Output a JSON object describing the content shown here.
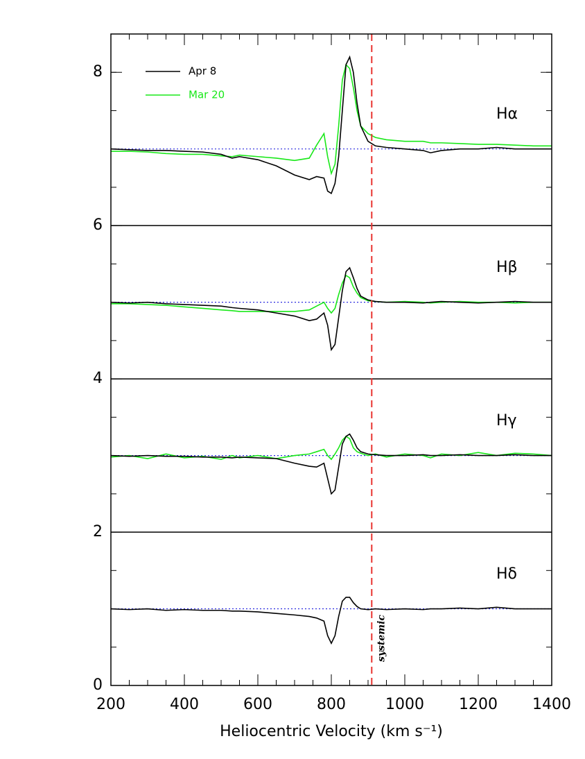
{
  "chart_data": {
    "type": "line",
    "xlabel": "Heliocentric Velocity (km s⁻¹)",
    "xlim": [
      200,
      1400
    ],
    "ylim": [
      0,
      8.5
    ],
    "xticks": [
      200,
      400,
      600,
      800,
      1000,
      1200,
      1400
    ],
    "yticks": [
      0,
      2,
      4,
      6,
      8
    ],
    "xminor_step": 50,
    "yminor_step": 0.5,
    "separators": [
      2,
      4,
      6
    ],
    "systemic_velocity": 910,
    "systemic_label": "systemic",
    "systemic_color": "#e8322f",
    "baseline_color": "#2a2adf",
    "series": [
      {
        "name": "Apr 8",
        "color": "#000000"
      },
      {
        "name": "Mar 20",
        "color": "#18e818"
      }
    ],
    "x": [
      200,
      250,
      300,
      350,
      400,
      450,
      500,
      530,
      550,
      600,
      650,
      700,
      740,
      760,
      780,
      790,
      800,
      810,
      820,
      830,
      840,
      850,
      860,
      870,
      880,
      900,
      920,
      950,
      1000,
      1050,
      1070,
      1100,
      1150,
      1200,
      1250,
      1300,
      1350,
      1400
    ],
    "panels": [
      {
        "label": "Hα",
        "baseline": 7,
        "values": [
          [
            7.0,
            6.99,
            6.98,
            6.98,
            6.97,
            6.96,
            6.93,
            6.88,
            6.9,
            6.86,
            6.78,
            6.66,
            6.6,
            6.64,
            6.62,
            6.45,
            6.42,
            6.55,
            6.9,
            7.5,
            8.1,
            8.2,
            8.0,
            7.6,
            7.3,
            7.1,
            7.04,
            7.02,
            7.0,
            6.98,
            6.95,
            6.98,
            7.0,
            7.0,
            7.02,
            7.0,
            7.0,
            7.0
          ],
          [
            6.97,
            6.97,
            6.96,
            6.94,
            6.93,
            6.93,
            6.91,
            6.9,
            6.92,
            6.9,
            6.88,
            6.85,
            6.88,
            7.05,
            7.2,
            6.9,
            6.68,
            6.8,
            7.3,
            7.9,
            8.1,
            8.05,
            7.8,
            7.5,
            7.3,
            7.2,
            7.15,
            7.12,
            7.1,
            7.1,
            7.08,
            7.08,
            7.07,
            7.06,
            7.06,
            7.05,
            7.04,
            7.04
          ]
        ]
      },
      {
        "label": "Hβ",
        "baseline": 5,
        "values": [
          [
            5.0,
            4.99,
            5.0,
            4.98,
            4.97,
            4.96,
            4.95,
            4.93,
            4.92,
            4.9,
            4.86,
            4.82,
            4.76,
            4.78,
            4.86,
            4.7,
            4.38,
            4.45,
            4.8,
            5.15,
            5.4,
            5.45,
            5.32,
            5.18,
            5.08,
            5.03,
            5.01,
            5.0,
            5.0,
            4.99,
            5.0,
            5.01,
            5.0,
            4.99,
            5.0,
            5.01,
            5.0,
            5.0
          ],
          [
            4.98,
            4.98,
            4.97,
            4.96,
            4.94,
            4.92,
            4.9,
            4.89,
            4.88,
            4.88,
            4.88,
            4.88,
            4.9,
            4.95,
            5.0,
            4.92,
            4.86,
            4.92,
            5.1,
            5.25,
            5.35,
            5.32,
            5.2,
            5.12,
            5.06,
            5.02,
            5.01,
            5.0,
            5.01,
            5.0,
            4.99,
            5.0,
            5.01,
            5.0,
            5.0,
            4.99,
            5.0,
            5.0
          ]
        ]
      },
      {
        "label": "Hγ",
        "baseline": 3,
        "values": [
          [
            3.0,
            2.99,
            3.0,
            2.99,
            2.99,
            2.98,
            2.98,
            2.97,
            2.98,
            2.97,
            2.96,
            2.9,
            2.86,
            2.85,
            2.9,
            2.7,
            2.5,
            2.55,
            2.85,
            3.15,
            3.25,
            3.28,
            3.2,
            3.1,
            3.05,
            3.02,
            3.01,
            3.0,
            3.0,
            3.01,
            3.0,
            3.0,
            3.01,
            3.0,
            3.0,
            3.01,
            3.0,
            3.0
          ],
          [
            2.98,
            3.0,
            2.96,
            3.02,
            2.97,
            2.99,
            2.95,
            3.0,
            2.97,
            3.0,
            2.96,
            3.0,
            3.02,
            3.05,
            3.08,
            3.0,
            2.95,
            3.02,
            3.1,
            3.2,
            3.25,
            3.22,
            3.1,
            3.05,
            3.03,
            3.0,
            3.02,
            2.98,
            3.02,
            3.0,
            2.97,
            3.02,
            3.0,
            3.04,
            3.0,
            3.03,
            3.02,
            3.0
          ]
        ]
      },
      {
        "label": "Hδ",
        "baseline": 1,
        "values": [
          [
            1.0,
            0.99,
            1.0,
            0.98,
            0.99,
            0.98,
            0.98,
            0.97,
            0.97,
            0.96,
            0.94,
            0.92,
            0.9,
            0.88,
            0.84,
            0.65,
            0.55,
            0.65,
            0.9,
            1.1,
            1.15,
            1.15,
            1.08,
            1.03,
            1.0,
            0.99,
            1.0,
            0.99,
            1.0,
            0.99,
            1.0,
            1.0,
            1.01,
            1.0,
            1.02,
            1.0,
            1.0,
            1.0
          ]
        ]
      }
    ]
  }
}
